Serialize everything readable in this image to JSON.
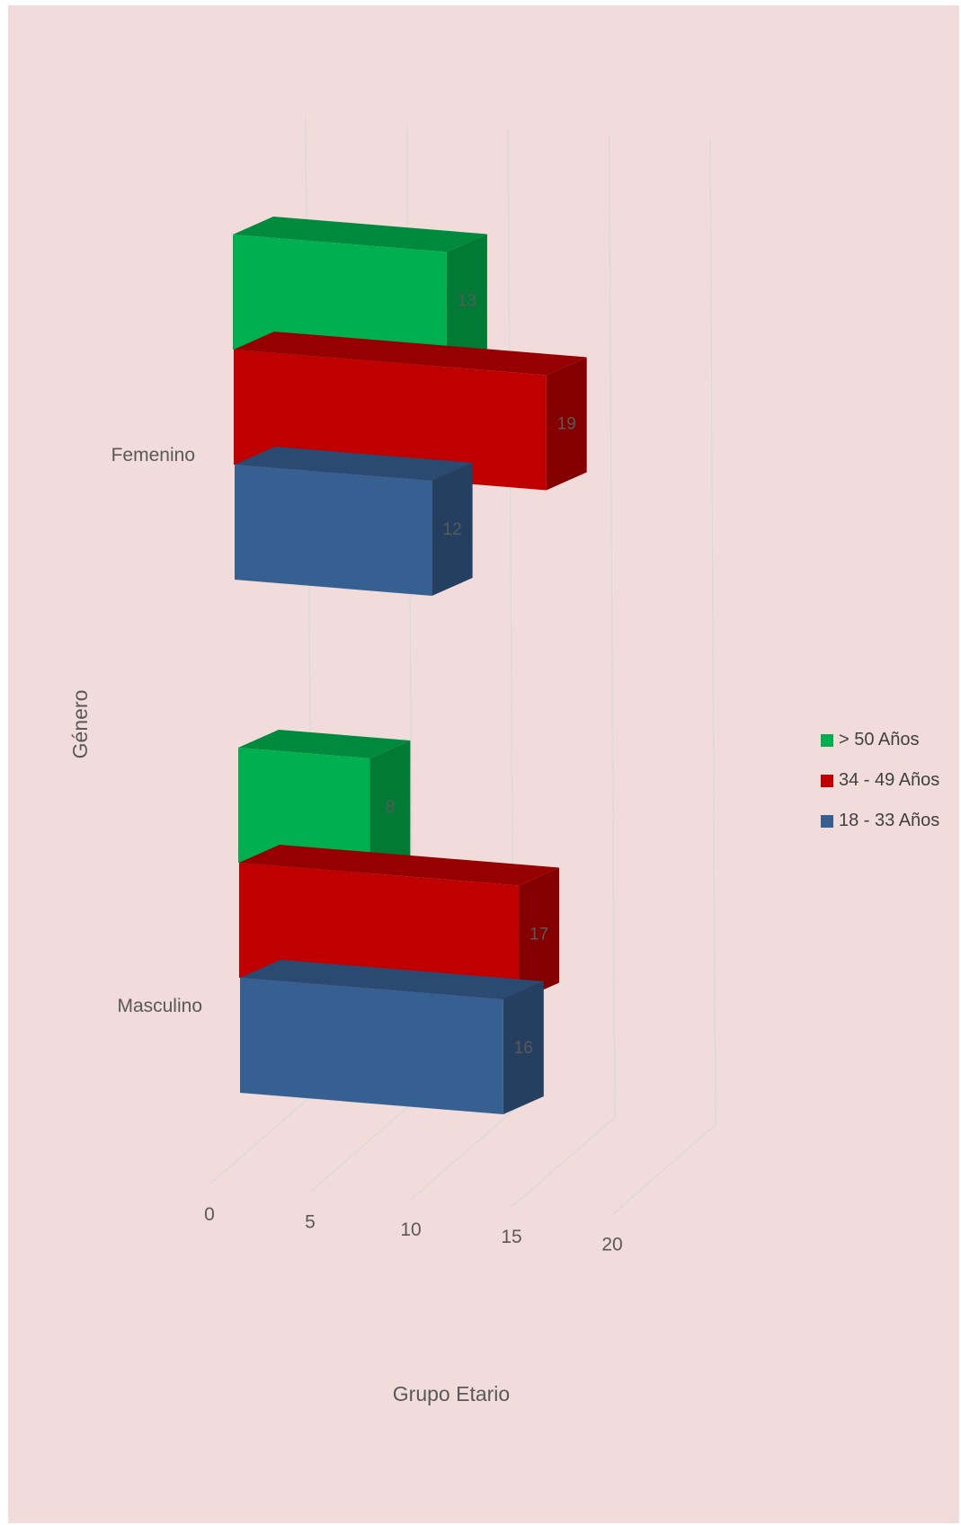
{
  "chart_data": {
    "type": "bar",
    "orientation": "horizontal",
    "style": "3d",
    "categories": [
      "Femenino",
      "Masculino"
    ],
    "series": [
      {
        "name": "> 50 Años",
        "values": [
          13,
          8
        ],
        "color": "#00b050",
        "top_color": "#008a3e",
        "side_color": "#007a35"
      },
      {
        "name": "34 - 49 Años",
        "values": [
          19,
          17
        ],
        "color": "#c00000",
        "top_color": "#960000",
        "side_color": "#840000"
      },
      {
        "name": "18 - 33 Años",
        "values": [
          12,
          16
        ],
        "color": "#376092",
        "top_color": "#2a4a71",
        "side_color": "#253f60"
      }
    ],
    "x_ticks": [
      "0",
      "5",
      "10",
      "15",
      "20"
    ],
    "xlim": [
      0,
      20
    ],
    "xlabel": "Grupo Etario",
    "ylabel": "Género",
    "data_labels": true,
    "grid": true,
    "legend_position": "right",
    "background_color": "#f2dcdb"
  }
}
